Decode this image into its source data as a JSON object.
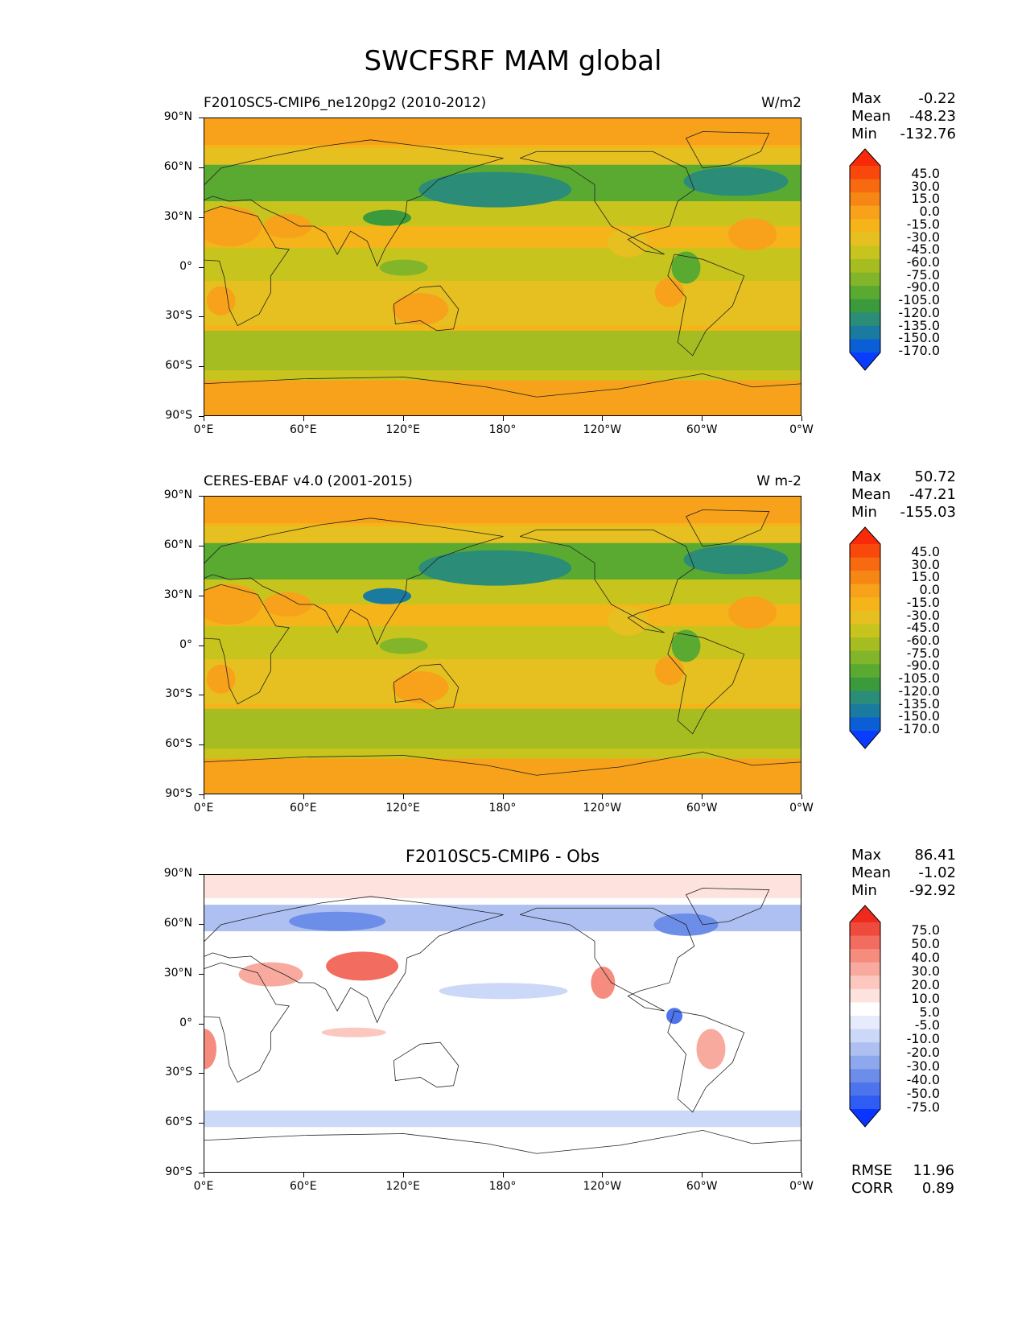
{
  "figure_title": "SWCFSRF MAM global",
  "colors": {
    "model_scale": [
      "#0a3cff",
      "#0a5fd6",
      "#1a7aa0",
      "#2b8c78",
      "#3a9a3c",
      "#5aaa32",
      "#82b52a",
      "#a6bd22",
      "#c8c41e",
      "#e6c020",
      "#f5b419",
      "#f7a21a",
      "#f78714",
      "#f86a0f",
      "#f8480b",
      "#f82a0a"
    ],
    "diff_scale": [
      "#0a34ff",
      "#2f5cf3",
      "#4d74ec",
      "#6c8ee8",
      "#8ea8ee",
      "#aec0f2",
      "#ccd8f8",
      "#e6ecfb",
      "#ffffff",
      "#fde2de",
      "#fbc7bf",
      "#f8aa9e",
      "#f58c7e",
      "#f26d5f",
      "#f04a3d",
      "#ee2a1c"
    ]
  },
  "panels": [
    {
      "left_title": "F2010SC5-CMIP6_ne120pg2 (2010-2012)",
      "right_title": "W/m2",
      "center_title": "",
      "stats": [
        {
          "label": "Max",
          "value": "-0.22"
        },
        {
          "label": "Mean",
          "value": "-48.23"
        },
        {
          "label": "Min",
          "value": "-132.76"
        }
      ],
      "colorbar_labels": [
        "45.0",
        "30.0",
        "15.0",
        "0.0",
        "-15.0",
        "-30.0",
        "-45.0",
        "-60.0",
        "-75.0",
        "-90.0",
        "-105.0",
        "-120.0",
        "-135.0",
        "-150.0",
        "-170.0"
      ]
    },
    {
      "left_title": "CERES-EBAF v4.0 (2001-2015)",
      "right_title": "W m-2",
      "center_title": "",
      "stats": [
        {
          "label": "Max",
          "value": "50.72"
        },
        {
          "label": "Mean",
          "value": "-47.21"
        },
        {
          "label": "Min",
          "value": "-155.03"
        }
      ],
      "colorbar_labels": [
        "45.0",
        "30.0",
        "15.0",
        "0.0",
        "-15.0",
        "-30.0",
        "-45.0",
        "-60.0",
        "-75.0",
        "-90.0",
        "-105.0",
        "-120.0",
        "-135.0",
        "-150.0",
        "-170.0"
      ]
    },
    {
      "left_title": "",
      "right_title": "",
      "center_title": "F2010SC5-CMIP6 - Obs",
      "stats": [
        {
          "label": "Max",
          "value": "86.41"
        },
        {
          "label": "Mean",
          "value": "-1.02"
        },
        {
          "label": "Min",
          "value": "-92.92"
        }
      ],
      "colorbar_labels": [
        "75.0",
        "50.0",
        "40.0",
        "30.0",
        "20.0",
        "10.0",
        "5.0",
        "-5.0",
        "-10.0",
        "-20.0",
        "-30.0",
        "-40.0",
        "-50.0",
        "-75.0"
      ],
      "bottom_stats": [
        {
          "label": "RMSE",
          "value": "11.96"
        },
        {
          "label": "CORR",
          "value": "0.89"
        }
      ]
    }
  ],
  "axes": {
    "y_ticks": [
      "90°N",
      "60°N",
      "30°N",
      "0°",
      "30°S",
      "60°S",
      "90°S"
    ],
    "x_ticks": [
      "0°E",
      "60°E",
      "120°E",
      "180°",
      "120°W",
      "60°W",
      "0°W"
    ]
  },
  "chart_data": [
    {
      "type": "heatmap",
      "title": "F2010SC5-CMIP6_ne120pg2 (2010-2012)",
      "units": "W/m2",
      "x_range": [
        0,
        360
      ],
      "y_range": [
        -90,
        90
      ],
      "levels": [
        -170,
        -150,
        -135,
        -120,
        -105,
        -90,
        -75,
        -60,
        -45,
        -30,
        -15,
        0,
        15,
        30,
        45
      ],
      "max": -0.22,
      "mean": -48.23,
      "min": -132.76
    },
    {
      "type": "heatmap",
      "title": "CERES-EBAF v4.0 (2001-2015)",
      "units": "W m-2",
      "x_range": [
        0,
        360
      ],
      "y_range": [
        -90,
        90
      ],
      "levels": [
        -170,
        -150,
        -135,
        -120,
        -105,
        -90,
        -75,
        -60,
        -45,
        -30,
        -15,
        0,
        15,
        30,
        45
      ],
      "max": 50.72,
      "mean": -47.21,
      "min": -155.03
    },
    {
      "type": "heatmap",
      "title": "F2010SC5-CMIP6 - Obs",
      "x_range": [
        0,
        360
      ],
      "y_range": [
        -90,
        90
      ],
      "levels": [
        -75,
        -50,
        -40,
        -30,
        -20,
        -10,
        -5,
        5,
        10,
        20,
        30,
        40,
        50,
        75
      ],
      "max": 86.41,
      "mean": -1.02,
      "min": -92.92,
      "rmse": 11.96,
      "corr": 0.89
    }
  ]
}
